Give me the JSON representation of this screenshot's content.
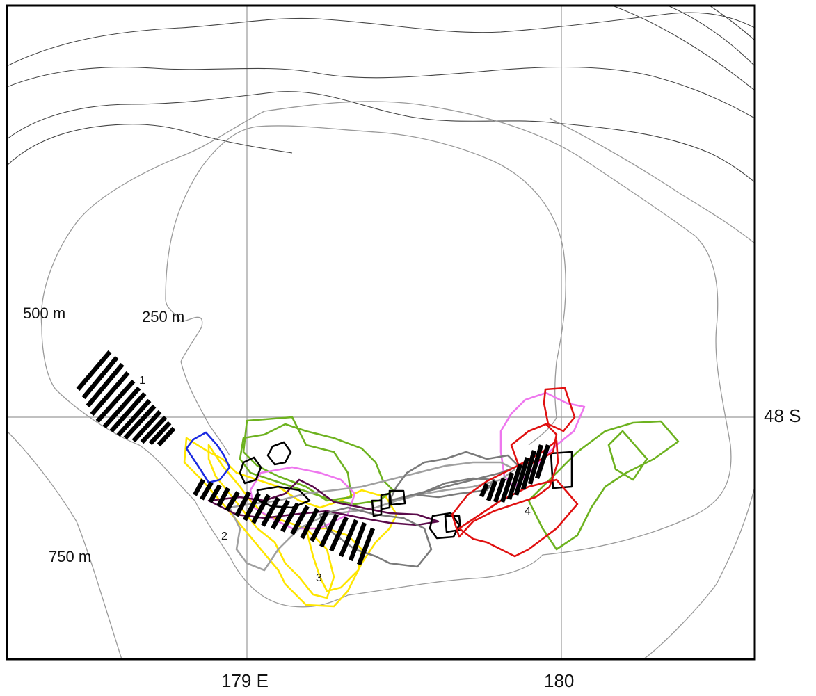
{
  "axes": {
    "lon_labels": [
      "179 E",
      "180"
    ],
    "lat_labels": [
      "48 S"
    ]
  },
  "depth_labels": {
    "d250": "250 m",
    "d500": "500 m",
    "d750": "750 m"
  },
  "area_labels": [
    "1",
    "2",
    "3",
    "4"
  ],
  "colors": {
    "contour_shallow": "#9a9a9a",
    "contour_deep": "#444444",
    "grid": "#9a9a9a",
    "hatch": "#000000",
    "tracks": [
      "#ffe600",
      "#6db21f",
      "#ee77ee",
      "#a0a0a0",
      "#5a0a4a",
      "#000000",
      "#e01010",
      "#1a2ae0",
      "#7a7a7a"
    ]
  }
}
